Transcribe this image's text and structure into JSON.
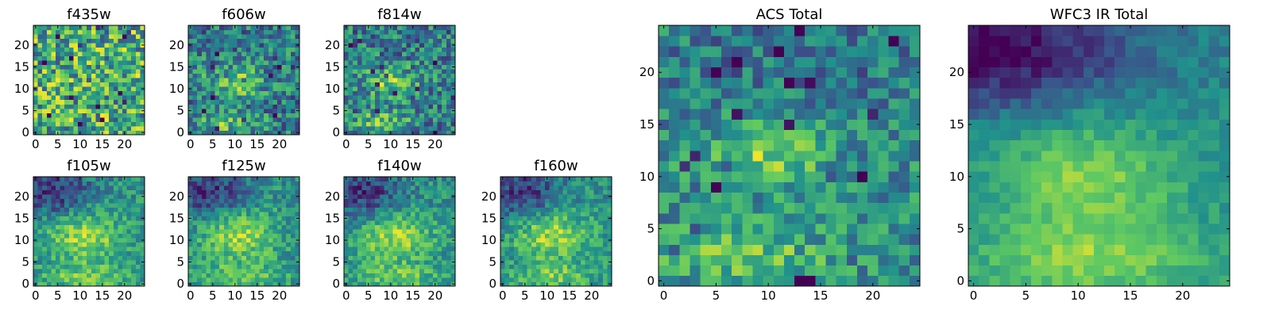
{
  "figure": {
    "colormap": "viridis",
    "colormap_stops": [
      "#440154",
      "#3b528b",
      "#21918c",
      "#5ec962",
      "#fde725"
    ]
  },
  "chart_data": [
    {
      "type": "heatmap",
      "title": "f435w",
      "grid": [
        25,
        25
      ],
      "xticks": [
        0,
        5,
        10,
        15,
        20
      ],
      "yticks": [
        0,
        5,
        10,
        15,
        20
      ],
      "xlim": [
        -0.5,
        24.5
      ],
      "ylim": [
        -0.5,
        24.5
      ],
      "seed": 11,
      "pattern": "noise"
    },
    {
      "type": "heatmap",
      "title": "f606w",
      "grid": [
        25,
        25
      ],
      "xticks": [
        0,
        5,
        10,
        15,
        20
      ],
      "yticks": [
        0,
        5,
        10,
        15,
        20
      ],
      "xlim": [
        -0.5,
        24.5
      ],
      "ylim": [
        -0.5,
        24.5
      ],
      "seed": 23,
      "pattern": "blob"
    },
    {
      "type": "heatmap",
      "title": "f814w",
      "grid": [
        25,
        25
      ],
      "xticks": [
        0,
        5,
        10,
        15,
        20
      ],
      "yticks": [
        0,
        5,
        10,
        15,
        20
      ],
      "xlim": [
        -0.5,
        24.5
      ],
      "ylim": [
        -0.5,
        24.5
      ],
      "seed": 37,
      "pattern": "blob"
    },
    {
      "type": "heatmap",
      "title": "f105w",
      "grid": [
        25,
        25
      ],
      "xticks": [
        0,
        5,
        10,
        15,
        20
      ],
      "yticks": [
        0,
        5,
        10,
        15,
        20
      ],
      "xlim": [
        -0.5,
        24.5
      ],
      "ylim": [
        -0.5,
        24.5
      ],
      "seed": 41,
      "pattern": "ir"
    },
    {
      "type": "heatmap",
      "title": "f125w",
      "grid": [
        25,
        25
      ],
      "xticks": [
        0,
        5,
        10,
        15,
        20
      ],
      "yticks": [
        0,
        5,
        10,
        15,
        20
      ],
      "xlim": [
        -0.5,
        24.5
      ],
      "ylim": [
        -0.5,
        24.5
      ],
      "seed": 53,
      "pattern": "ir"
    },
    {
      "type": "heatmap",
      "title": "f140w",
      "grid": [
        25,
        25
      ],
      "xticks": [
        0,
        5,
        10,
        15,
        20
      ],
      "yticks": [
        0,
        5,
        10,
        15,
        20
      ],
      "xlim": [
        -0.5,
        24.5
      ],
      "ylim": [
        -0.5,
        24.5
      ],
      "seed": 67,
      "pattern": "ir"
    },
    {
      "type": "heatmap",
      "title": "f160w",
      "grid": [
        25,
        25
      ],
      "xticks": [
        0,
        5,
        10,
        15,
        20
      ],
      "yticks": [
        0,
        5,
        10,
        15,
        20
      ],
      "xlim": [
        -0.5,
        24.5
      ],
      "ylim": [
        -0.5,
        24.5
      ],
      "seed": 79,
      "pattern": "ir"
    },
    {
      "type": "heatmap",
      "title": "ACS Total",
      "grid": [
        25,
        25
      ],
      "xticks": [
        0,
        5,
        10,
        15,
        20
      ],
      "yticks": [
        0,
        5,
        10,
        15,
        20
      ],
      "xlim": [
        -0.5,
        24.5
      ],
      "ylim": [
        -0.5,
        24.5
      ],
      "seed": 97,
      "pattern": "acs"
    },
    {
      "type": "heatmap",
      "title": "WFC3 IR Total",
      "grid": [
        25,
        25
      ],
      "xticks": [
        0,
        5,
        10,
        15,
        20
      ],
      "yticks": [
        0,
        5,
        10,
        15,
        20
      ],
      "xlim": [
        -0.5,
        24.5
      ],
      "ylim": [
        -0.5,
        24.5
      ],
      "seed": 101,
      "pattern": "irtotal"
    }
  ]
}
